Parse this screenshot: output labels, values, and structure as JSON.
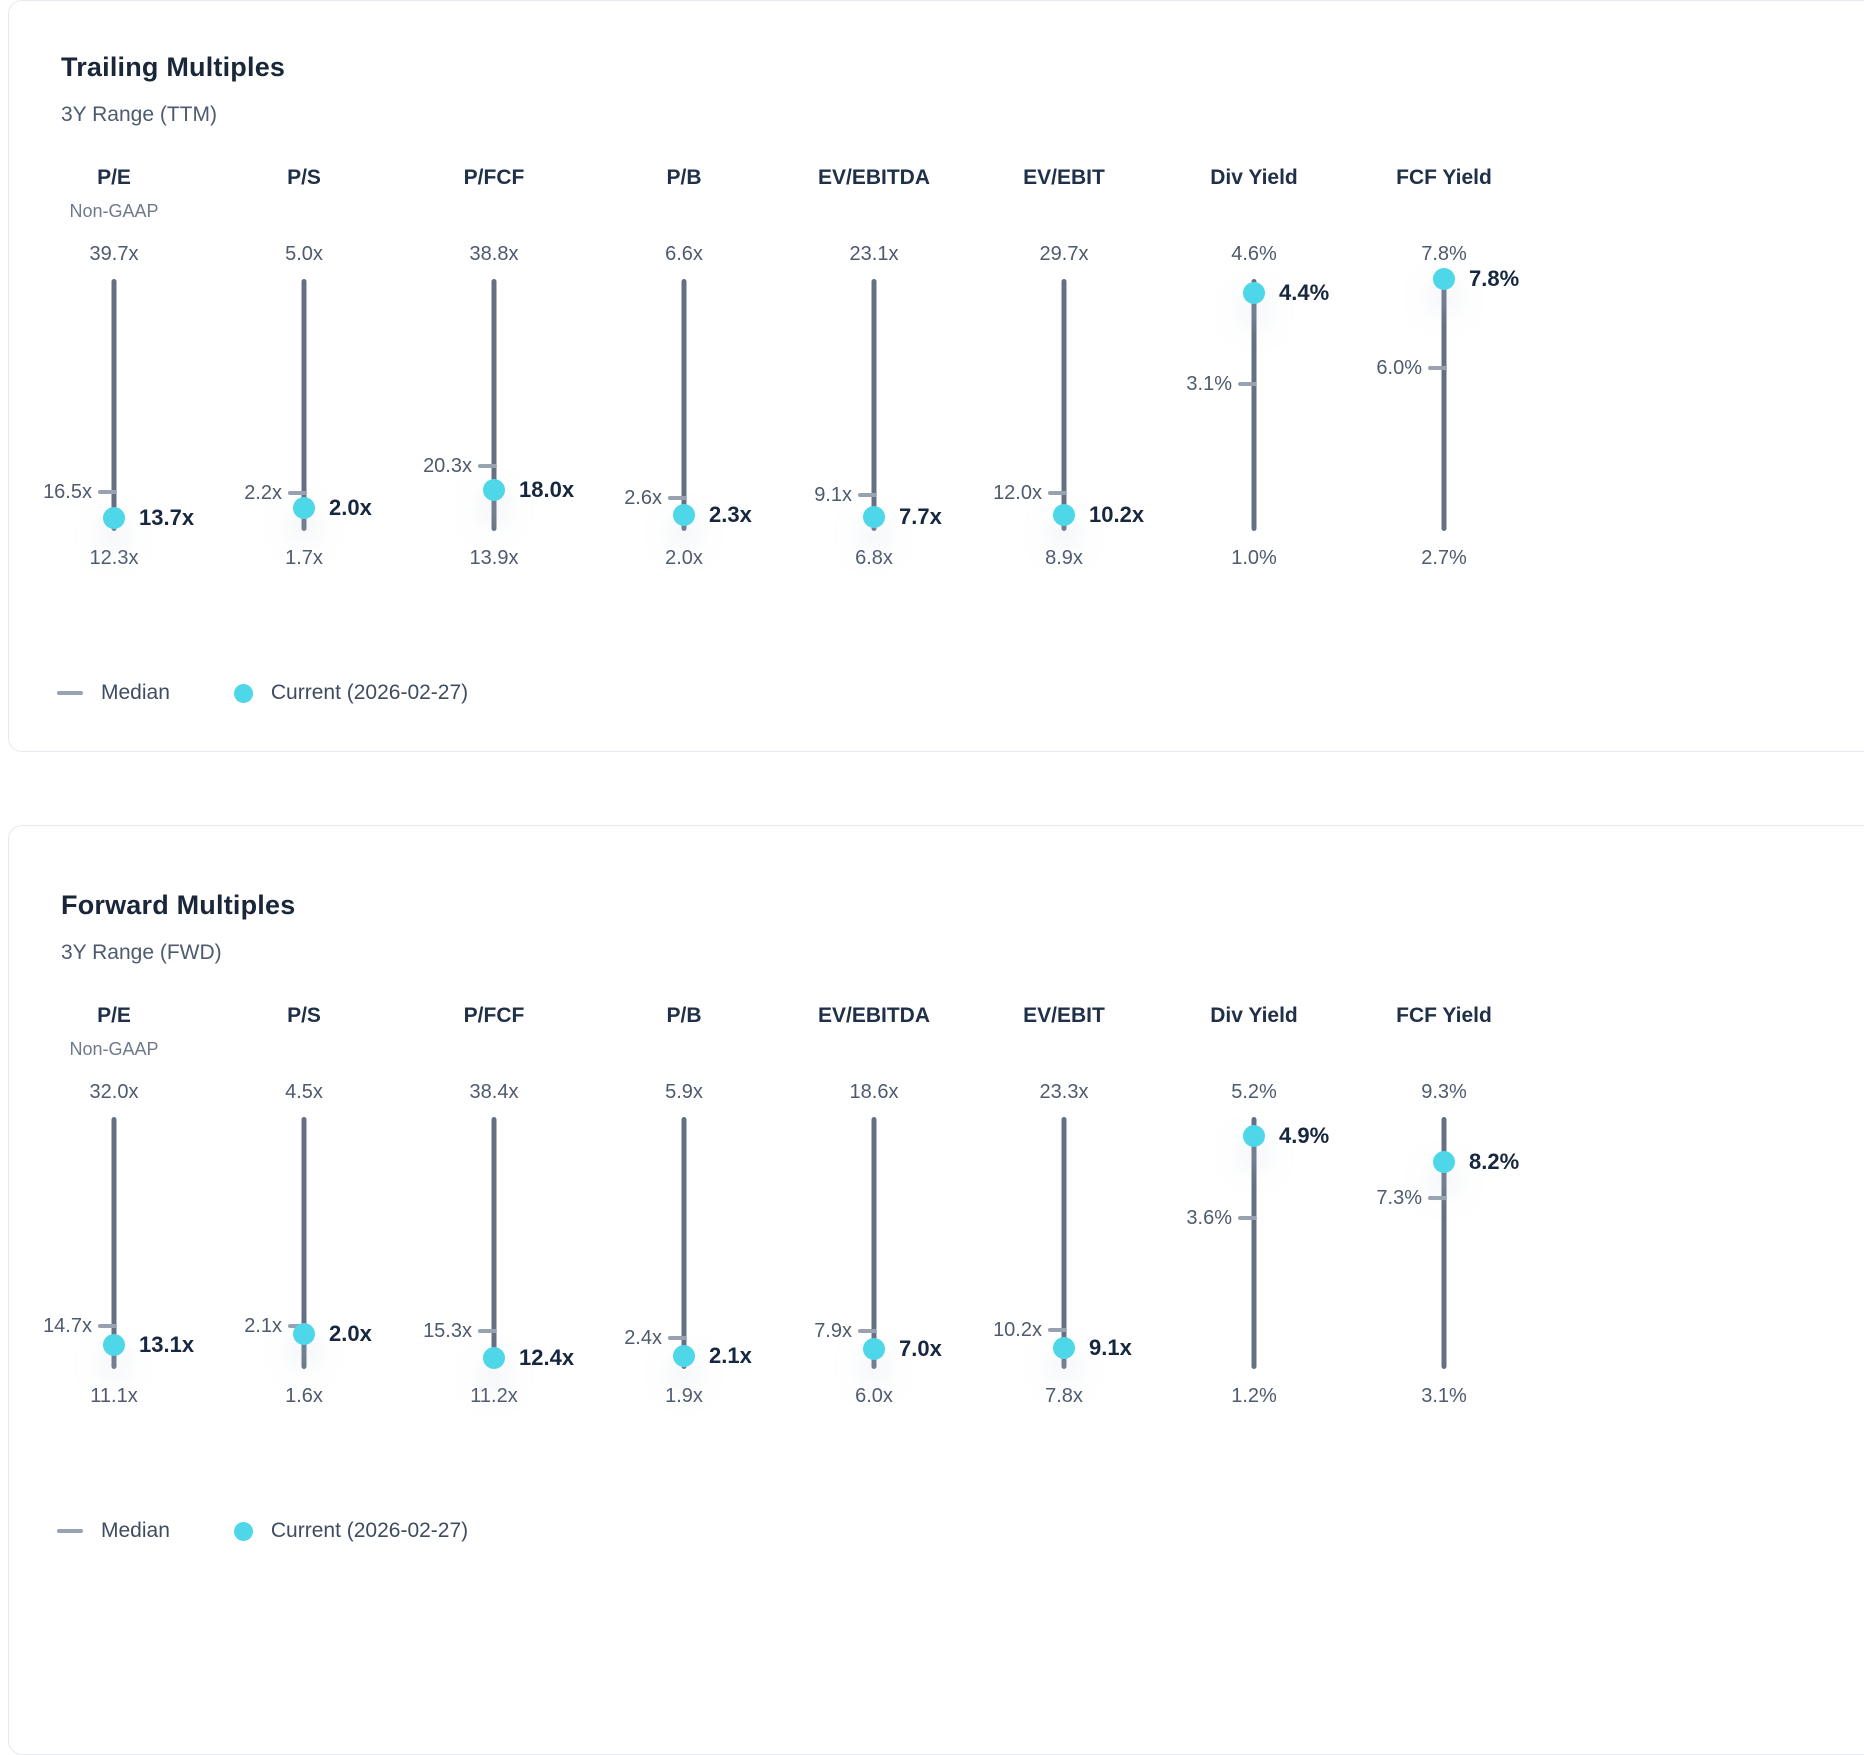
{
  "colors": {
    "accent_current_dot": "#4dd7e8",
    "range_line": "#657083",
    "median_tick": "#98a2b0",
    "title_text": "#1a2639",
    "muted_text": "#4e5a6e",
    "card_border": "#e5eaf1"
  },
  "chart_data": [
    {
      "type": "range",
      "title": "Trailing Multiples",
      "subtitle": "3Y Range (TTM)",
      "legend": [
        {
          "marker": "dash",
          "label": "Median"
        },
        {
          "marker": "dot",
          "label": "Current (2026-02-27)"
        }
      ],
      "metrics": [
        {
          "label": "P/E",
          "sublabel": "Non-GAAP",
          "unit": "x",
          "high": 39.7,
          "low": 12.3,
          "median": 16.5,
          "current": 13.7,
          "labels": {
            "high": "39.7x",
            "low": "12.3x",
            "median": "16.5x",
            "current": "13.7x"
          }
        },
        {
          "label": "P/S",
          "sublabel": "",
          "unit": "x",
          "high": 5.0,
          "low": 1.7,
          "median": 2.2,
          "current": 2.0,
          "labels": {
            "high": "5.0x",
            "low": "1.7x",
            "median": "2.2x",
            "current": "2.0x"
          }
        },
        {
          "label": "P/FCF",
          "sublabel": "",
          "unit": "x",
          "high": 38.8,
          "low": 13.9,
          "median": 20.3,
          "current": 18.0,
          "labels": {
            "high": "38.8x",
            "low": "13.9x",
            "median": "20.3x",
            "current": "18.0x"
          }
        },
        {
          "label": "P/B",
          "sublabel": "",
          "unit": "x",
          "high": 6.6,
          "low": 2.0,
          "median": 2.6,
          "current": 2.3,
          "labels": {
            "high": "6.6x",
            "low": "2.0x",
            "median": "2.6x",
            "current": "2.3x"
          }
        },
        {
          "label": "EV/EBITDA",
          "sublabel": "",
          "unit": "x",
          "high": 23.1,
          "low": 6.8,
          "median": 9.1,
          "current": 7.7,
          "labels": {
            "high": "23.1x",
            "low": "6.8x",
            "median": "9.1x",
            "current": "7.7x"
          }
        },
        {
          "label": "EV/EBIT",
          "sublabel": "",
          "unit": "x",
          "high": 29.7,
          "low": 8.9,
          "median": 12.0,
          "current": 10.2,
          "labels": {
            "high": "29.7x",
            "low": "8.9x",
            "median": "12.0x",
            "current": "10.2x"
          }
        },
        {
          "label": "Div Yield",
          "sublabel": "",
          "unit": "%",
          "high": 4.6,
          "low": 1.0,
          "median": 3.1,
          "current": 4.4,
          "labels": {
            "high": "4.6%",
            "low": "1.0%",
            "median": "3.1%",
            "current": "4.4%"
          }
        },
        {
          "label": "FCF Yield",
          "sublabel": "",
          "unit": "%",
          "high": 7.8,
          "low": 2.7,
          "median": 6.0,
          "current": 7.8,
          "labels": {
            "high": "7.8%",
            "low": "2.7%",
            "median": "6.0%",
            "current": "7.8%"
          }
        }
      ]
    },
    {
      "type": "range",
      "title": "Forward Multiples",
      "subtitle": "3Y Range (FWD)",
      "legend": [
        {
          "marker": "dash",
          "label": "Median"
        },
        {
          "marker": "dot",
          "label": "Current (2026-02-27)"
        }
      ],
      "metrics": [
        {
          "label": "P/E",
          "sublabel": "Non-GAAP",
          "unit": "x",
          "high": 32.0,
          "low": 11.1,
          "median": 14.7,
          "current": 13.1,
          "labels": {
            "high": "32.0x",
            "low": "11.1x",
            "median": "14.7x",
            "current": "13.1x"
          }
        },
        {
          "label": "P/S",
          "sublabel": "",
          "unit": "x",
          "high": 4.5,
          "low": 1.6,
          "median": 2.1,
          "current": 2.0,
          "labels": {
            "high": "4.5x",
            "low": "1.6x",
            "median": "2.1x",
            "current": "2.0x"
          }
        },
        {
          "label": "P/FCF",
          "sublabel": "",
          "unit": "x",
          "high": 38.4,
          "low": 11.2,
          "median": 15.3,
          "current": 12.4,
          "labels": {
            "high": "38.4x",
            "low": "11.2x",
            "median": "15.3x",
            "current": "12.4x"
          }
        },
        {
          "label": "P/B",
          "sublabel": "",
          "unit": "x",
          "high": 5.9,
          "low": 1.9,
          "median": 2.4,
          "current": 2.1,
          "labels": {
            "high": "5.9x",
            "low": "1.9x",
            "median": "2.4x",
            "current": "2.1x"
          }
        },
        {
          "label": "EV/EBITDA",
          "sublabel": "",
          "unit": "x",
          "high": 18.6,
          "low": 6.0,
          "median": 7.9,
          "current": 7.0,
          "labels": {
            "high": "18.6x",
            "low": "6.0x",
            "median": "7.9x",
            "current": "7.0x"
          }
        },
        {
          "label": "EV/EBIT",
          "sublabel": "",
          "unit": "x",
          "high": 23.3,
          "low": 7.8,
          "median": 10.2,
          "current": 9.1,
          "labels": {
            "high": "23.3x",
            "low": "7.8x",
            "median": "10.2x",
            "current": "9.1x"
          }
        },
        {
          "label": "Div Yield",
          "sublabel": "",
          "unit": "%",
          "high": 5.2,
          "low": 1.2,
          "median": 3.6,
          "current": 4.9,
          "labels": {
            "high": "5.2%",
            "low": "1.2%",
            "median": "3.6%",
            "current": "4.9%"
          }
        },
        {
          "label": "FCF Yield",
          "sublabel": "",
          "unit": "%",
          "high": 9.3,
          "low": 3.1,
          "median": 7.3,
          "current": 8.2,
          "labels": {
            "high": "9.3%",
            "low": "3.1%",
            "median": "7.3%",
            "current": "8.2%"
          }
        }
      ]
    }
  ]
}
